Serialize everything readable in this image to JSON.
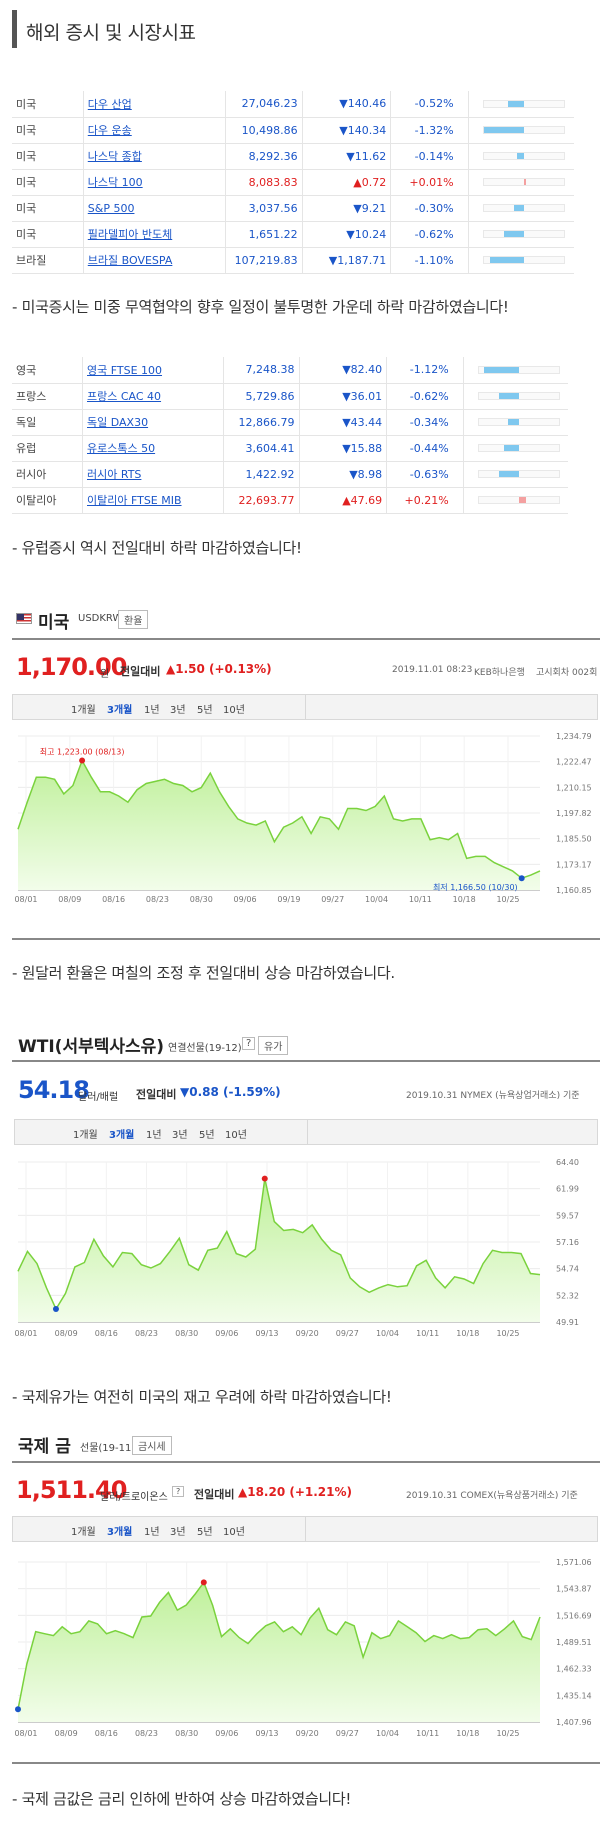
{
  "page_title": "해외 증시 및 시장시표",
  "us_table": [
    {
      "country": "미국",
      "name": "다우 산업",
      "value": "27,046.23",
      "change": "▼140.46",
      "pct": "-0.52%",
      "dir": "down",
      "bar": 0.2
    },
    {
      "country": "미국",
      "name": "다우 운송",
      "value": "10,498.86",
      "change": "▼140.34",
      "pct": "-1.32%",
      "dir": "down",
      "bar": 0.5
    },
    {
      "country": "미국",
      "name": "나스닥 종합",
      "value": "8,292.36",
      "change": "▼11.62",
      "pct": "-0.14%",
      "dir": "down",
      "bar": 0.08
    },
    {
      "country": "미국",
      "name": "나스닥 100",
      "value": "8,083.83",
      "change": "▲0.72",
      "pct": "+0.01%",
      "dir": "up",
      "bar": 0.01
    },
    {
      "country": "미국",
      "name": "S&P 500",
      "value": "3,037.56",
      "change": "▼9.21",
      "pct": "-0.30%",
      "dir": "down",
      "bar": 0.12
    },
    {
      "country": "미국",
      "name": "필라델피아 반도체",
      "value": "1,651.22",
      "change": "▼10.24",
      "pct": "-0.62%",
      "dir": "down",
      "bar": 0.24
    },
    {
      "country": "브라질",
      "name": "브라질 BOVESPA",
      "value": "107,219.83",
      "change": "▼1,187.71",
      "pct": "-1.10%",
      "dir": "down",
      "bar": 0.42
    }
  ],
  "us_note": "- 미국증시는 미중 무역협약의 향후 일정이 불투명한 가운데 하락 마감하였습니다!",
  "eu_table": [
    {
      "country": "영국",
      "name": "영국 FTSE 100",
      "value": "7,248.38",
      "change": "▼82.40",
      "pct": "-1.12%",
      "dir": "down",
      "bar": 0.44
    },
    {
      "country": "프랑스",
      "name": "프랑스 CAC 40",
      "value": "5,729.86",
      "change": "▼36.01",
      "pct": "-0.62%",
      "dir": "down",
      "bar": 0.25
    },
    {
      "country": "독일",
      "name": "독일 DAX30",
      "value": "12,866.79",
      "change": "▼43.44",
      "pct": "-0.34%",
      "dir": "down",
      "bar": 0.14
    },
    {
      "country": "유럽",
      "name": "유로스톡스 50",
      "value": "3,604.41",
      "change": "▼15.88",
      "pct": "-0.44%",
      "dir": "down",
      "bar": 0.18
    },
    {
      "country": "러시아",
      "name": "러시아 RTS",
      "value": "1,422.92",
      "change": "▼8.98",
      "pct": "-0.63%",
      "dir": "down",
      "bar": 0.25
    },
    {
      "country": "이탈리아",
      "name": "이탈리아 FTSE MIB",
      "value": "22,693.77",
      "change": "▲47.69",
      "pct": "+0.21%",
      "dir": "up",
      "bar": 0.09
    }
  ],
  "eu_note": "- 유럽증시 역시 전일대비 하락 마감하였습니다!",
  "colors": {
    "down": "#1a55c8",
    "up": "#e02020",
    "down_bar": "#7fc8ef",
    "up_bar": "#f4a0a0",
    "line": "#7ad23d",
    "fill_top": "#bff09a",
    "fill_bottom": "#f2fdea",
    "hi": "#e02020",
    "lo": "#1a55c8"
  },
  "usd": {
    "title": "미국",
    "code": "USDKRW",
    "btn": "환율",
    "price": "1,170.00",
    "unit": "원",
    "chg_label": "전일대비",
    "chg": "▲1.50 (+0.13%)",
    "meta1": "2019.11.01 08:23",
    "meta2": "KEB하나은행",
    "meta3": "고시회차 002회",
    "tabs": [
      "1개월",
      "3개월",
      "1년",
      "3년",
      "5년",
      "10년"
    ],
    "note": "- 원달러 환율은 며칠의 조정 후 전일대비 상승 마감하였습니다."
  },
  "wti": {
    "title": "WTI(서부텍사스유)",
    "sub": "연결선물(19-12)",
    "q": "?",
    "btn": "유가",
    "price": "54.18",
    "unit": "달러/배럴",
    "chg_label": "전일대비",
    "chg": "▼0.88 (-1.59%)",
    "meta": "2019.10.31 NYMEX (뉴욕상업거래소) 기준",
    "tabs": [
      "1개월",
      "3개월",
      "1년",
      "3년",
      "5년",
      "10년"
    ],
    "note": "- 국제유가는 여전히 미국의 재고 우려에 하락 마감하였습니다!"
  },
  "gold": {
    "title": "국제 금",
    "sub": "선물(19-11)",
    "btn": "금시세",
    "price": "1,511.40",
    "unit": "달러/트로이온스",
    "q": "?",
    "chg_label": "전일대비",
    "chg": "▲18.20 (+1.21%)",
    "meta": "2019.10.31 COMEX(뉴욕상품거래소) 기준",
    "tabs": [
      "1개월",
      "3개월",
      "1년",
      "3년",
      "5년",
      "10년"
    ],
    "note": "- 국제 금값은 금리 인하에 반하여 상승 마감하였습니다!"
  },
  "chart_data": [
    {
      "type": "area",
      "title": "USDKRW",
      "x_ticks": [
        "08/01",
        "08/09",
        "08/16",
        "08/23",
        "08/30",
        "09/06",
        "09/19",
        "09/27",
        "10/04",
        "10/11",
        "10/18",
        "10/25"
      ],
      "y_ticks": [
        "1,234.79",
        "1,222.47",
        "1,210.15",
        "1,197.82",
        "1,185.50",
        "1,173.17",
        "1,160.85"
      ],
      "ylim": [
        1160.85,
        1234.79
      ],
      "values": [
        1190,
        1203,
        1215,
        1215,
        1214,
        1207,
        1211,
        1223,
        1215,
        1208,
        1208,
        1206,
        1203,
        1209,
        1212,
        1213,
        1214,
        1212,
        1211,
        1208,
        1210,
        1217,
        1208,
        1201,
        1195,
        1193,
        1192,
        1194,
        1184,
        1191,
        1193,
        1196,
        1188,
        1196,
        1195,
        1190,
        1200,
        1200,
        1199,
        1201,
        1206,
        1195,
        1194,
        1195,
        1195,
        1185,
        1186,
        1185,
        1188,
        1176,
        1177,
        1177,
        1174,
        1172,
        1170,
        1166.5,
        1168,
        1170
      ],
      "high": {
        "label": "최고 1,223.00 (08/13)",
        "value": 1223.0
      },
      "low": {
        "label": "최저 1,166.50 (10/30)",
        "value": 1166.5
      }
    },
    {
      "type": "area",
      "title": "WTI",
      "x_ticks": [
        "08/01",
        "08/09",
        "08/16",
        "08/23",
        "08/30",
        "09/06",
        "09/13",
        "09/20",
        "09/27",
        "10/04",
        "10/11",
        "10/18",
        "10/25"
      ],
      "y_ticks": [
        "64.40",
        "61.99",
        "59.57",
        "57.16",
        "54.74",
        "52.32",
        "49.91"
      ],
      "ylim": [
        49.91,
        64.4
      ],
      "values": [
        54.5,
        56.3,
        55.2,
        53.0,
        51.09,
        52.5,
        54.9,
        55.3,
        57.4,
        55.9,
        54.9,
        56.2,
        56.1,
        55.1,
        54.8,
        55.2,
        56.3,
        57.5,
        55.1,
        54.6,
        56.4,
        56.6,
        58.1,
        56.1,
        55.8,
        56.5,
        62.9,
        59.0,
        58.2,
        58.3,
        58.0,
        58.7,
        57.4,
        56.4,
        56.0,
        53.9,
        53.1,
        52.6,
        53.0,
        53.3,
        53.1,
        53.2,
        55.0,
        55.5,
        53.9,
        53.0,
        54.0,
        53.8,
        53.4,
        55.2,
        56.4,
        56.2,
        56.2,
        56.1,
        54.3,
        54.2
      ]
    },
    {
      "type": "area",
      "title": "Gold",
      "x_ticks": [
        "08/01",
        "08/09",
        "08/16",
        "08/23",
        "08/30",
        "09/06",
        "09/13",
        "09/20",
        "09/27",
        "10/04",
        "10/11",
        "10/18",
        "10/25"
      ],
      "y_ticks": [
        "1,571.06",
        "1,543.87",
        "1,516.69",
        "1,489.51",
        "1,462.33",
        "1,435.14",
        "1,407.96"
      ],
      "ylim": [
        1407.96,
        1571.06
      ],
      "values": [
        1420.9,
        1467,
        1500,
        1498,
        1496,
        1505,
        1498,
        1500,
        1511,
        1508,
        1498,
        1501,
        1498,
        1494,
        1515,
        1516,
        1530,
        1540,
        1522,
        1527,
        1538,
        1550.3,
        1527,
        1495,
        1503,
        1494,
        1488,
        1498,
        1506,
        1510,
        1500,
        1505,
        1497,
        1514,
        1524,
        1502,
        1497,
        1510,
        1506,
        1474,
        1499,
        1493,
        1496,
        1511,
        1505,
        1499,
        1490,
        1496,
        1493,
        1497,
        1493,
        1494,
        1502,
        1503,
        1496,
        1503,
        1511,
        1495,
        1492,
        1515
      ]
    }
  ]
}
